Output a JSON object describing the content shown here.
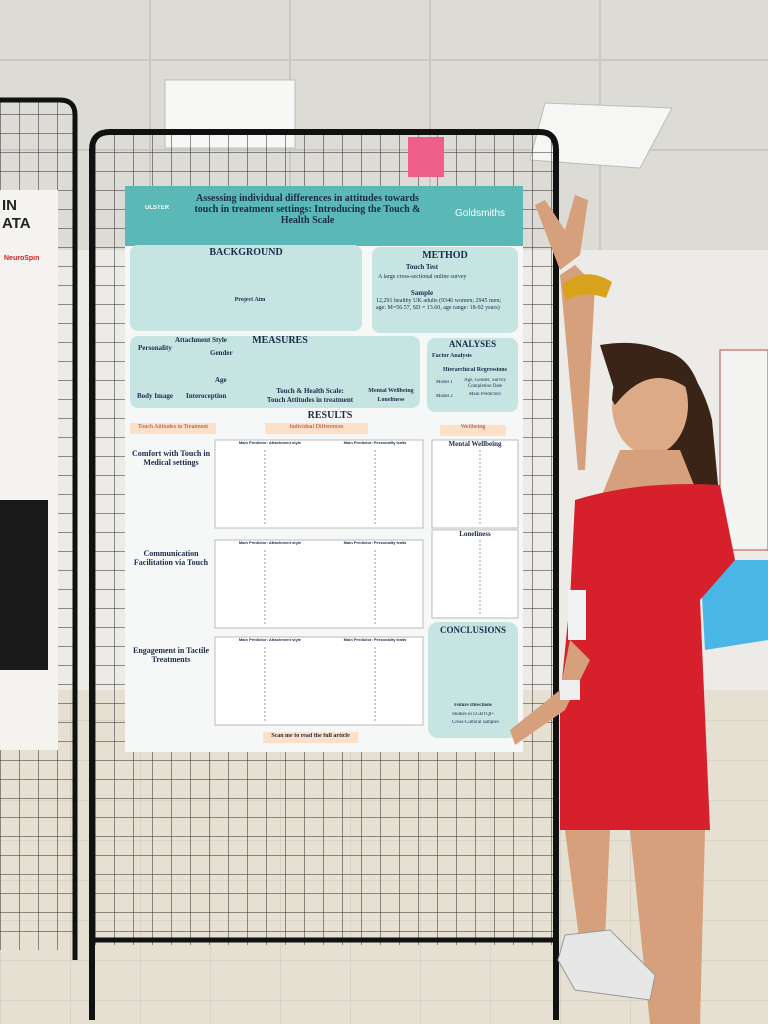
{
  "side_poster": {
    "title_lines": [
      "IN",
      "ATA"
    ],
    "logo": "NeuroSpin"
  },
  "poster": {
    "title": "Assessing individual differences in attitudes towards touch in treatment settings: Introducing the Touch & Health Scale",
    "logo_left": "ULSTER",
    "logo_right": "Goldsmiths",
    "background": {
      "heading": "BACKGROUND",
      "project_aim": "Project Aim"
    },
    "method": {
      "heading": "METHOD",
      "touch_test": "Touch Test",
      "touch_test_text": "A large cross-sectional online survey",
      "sample": "Sample",
      "sample_text": "12,291 healthy UK adults (9346 women; 2945 men; age: M=56.57, SD = 13.60, age range: 18-92 years)"
    },
    "measures": {
      "heading": "MEASURES",
      "predictors": [
        "Attachment Style",
        "Personality",
        "Gender",
        "Age",
        "Body Image",
        "Interoception"
      ],
      "outcome_title": "Touch & Health Scale:",
      "outcome_subtitle": "Touch Attitudes in treatment",
      "wellbeing": [
        "Mental Wellbeing",
        "Loneliness"
      ]
    },
    "analyses": {
      "heading": "ANALYSES",
      "factor": "Factor Analysis",
      "regressions": "Hierarchical Regressions",
      "models": [
        [
          "Model 1",
          "Age, Gender, Survey Completion Date"
        ],
        [
          "Model 2",
          "Main Predictors"
        ]
      ]
    },
    "results": {
      "heading": "RESULTS",
      "columns": [
        "Touch Attitudes in Treatment",
        "Individual Differences",
        "Wellbeing"
      ],
      "rows": [
        {
          "label": "Comfort with Touch in Medical settings",
          "left": "Main Predictor: Attachment style",
          "right": "Main Predictor: Personality traits"
        },
        {
          "label": "Communication Facilitation via Touch",
          "left": "Main Predictor: Attachment style",
          "right": "Main Predictor: Personality traits"
        },
        {
          "label": "Engagement in Tactile Treatments",
          "left": "Main Predictor: Attachment style",
          "right": "Main Predictor: Personality traits"
        }
      ],
      "wellbeing_panels": [
        "Mental Wellbeing",
        "Loneliness"
      ]
    },
    "conclusions": {
      "heading": "CONCLUSIONS",
      "future": "Future Directions",
      "items": [
        "Studies in LGBTQI+",
        "Cross-Cultural samples"
      ]
    },
    "footer": "Scan me to read the full article"
  }
}
